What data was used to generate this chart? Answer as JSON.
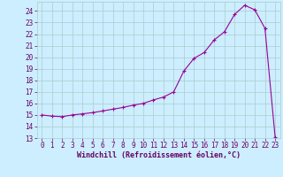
{
  "x_full": [
    0,
    1,
    2,
    3,
    4,
    5,
    6,
    7,
    8,
    9,
    10,
    11,
    12,
    13,
    14,
    15,
    16,
    17,
    18,
    19,
    20,
    21,
    22,
    23
  ],
  "y_full": [
    15.0,
    14.9,
    14.85,
    15.0,
    15.1,
    15.2,
    15.35,
    15.5,
    15.65,
    15.85,
    16.0,
    16.3,
    16.55,
    17.0,
    18.8,
    19.9,
    20.4,
    21.5,
    22.2,
    23.7,
    24.5,
    24.1,
    22.5,
    13.1
  ],
  "xlabel": "Windchill (Refroidissement éolien,°C)",
  "ylim": [
    13,
    24.8
  ],
  "xlim": [
    -0.5,
    23.5
  ],
  "yticks": [
    13,
    14,
    15,
    16,
    17,
    18,
    19,
    20,
    21,
    22,
    23,
    24
  ],
  "xticks": [
    0,
    1,
    2,
    3,
    4,
    5,
    6,
    7,
    8,
    9,
    10,
    11,
    12,
    13,
    14,
    15,
    16,
    17,
    18,
    19,
    20,
    21,
    22,
    23
  ],
  "line_color": "#990099",
  "marker": "+",
  "bg_color": "#cceeff",
  "grid_color": "#aacccc",
  "tick_label_color": "#660066",
  "axis_label_color": "#660066",
  "tick_fontsize": 5.5,
  "xlabel_fontsize": 6.0
}
